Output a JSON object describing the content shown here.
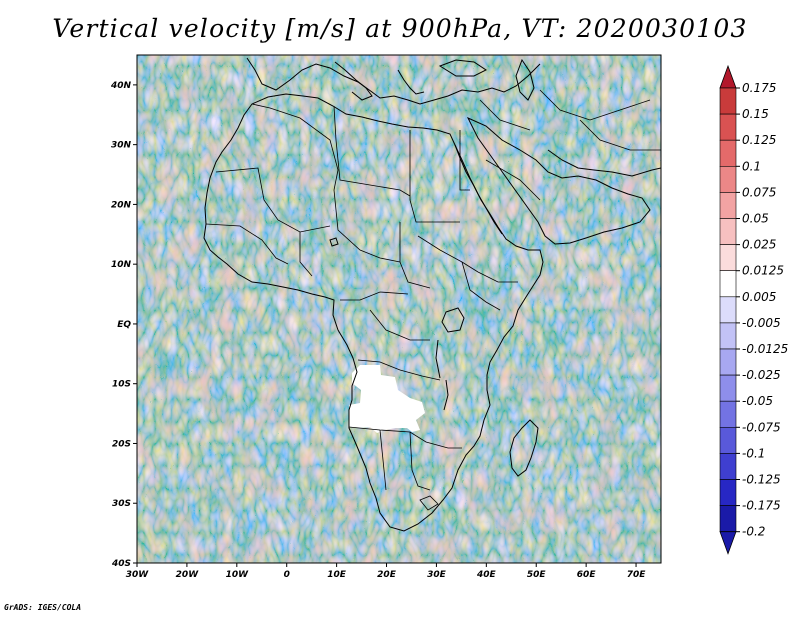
{
  "title": "Vertical velocity [m/s] at 900hPa, VT: 2020030103",
  "footer": "GrADS: IGES/COLA",
  "map": {
    "lon_range": [
      -30,
      75
    ],
    "lat_range": [
      -40,
      45
    ],
    "x_ticks": [
      "30W",
      "20W",
      "10W",
      "0",
      "10E",
      "20E",
      "30E",
      "40E",
      "50E",
      "60E",
      "70E"
    ],
    "y_ticks": [
      "40N",
      "30N",
      "20N",
      "10N",
      "EQ",
      "10S",
      "20S",
      "30S",
      "40S"
    ],
    "no_data_region": "Angola / Zambia / Botswana interior (white)"
  },
  "colorbar": {
    "labels": [
      "0.175",
      "0.15",
      "0.125",
      "0.1",
      "0.075",
      "0.05",
      "0.025",
      "0.0125",
      "0.005",
      "-0.005",
      "-0.0125",
      "-0.025",
      "-0.05",
      "-0.075",
      "-0.1",
      "-0.125",
      "-0.175",
      "-0.2"
    ],
    "colors": [
      "#b2182b",
      "#c93b3b",
      "#d95252",
      "#e46a6a",
      "#ec8787",
      "#f2a3a3",
      "#f7c0c0",
      "#fbdcdc",
      "#ffffff",
      "#dcdcfb",
      "#c2c2f6",
      "#a8a8f1",
      "#8e8eeb",
      "#7373e3",
      "#5959da",
      "#3f3fd0",
      "#2727c4",
      "#1a1aa8"
    ],
    "top_arrow_color": "#b2182b",
    "bottom_arrow_color": "#1a1aa8"
  }
}
